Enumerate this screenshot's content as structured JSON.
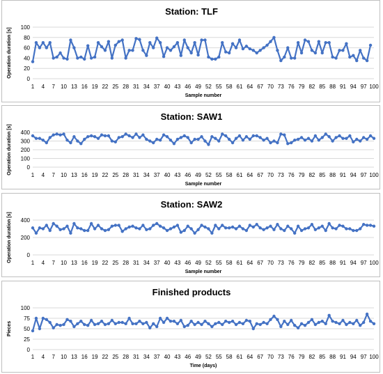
{
  "colors": {
    "line": "#4472C4",
    "grid": "#d9d9d9",
    "border": "#bfbfbf"
  },
  "x_tick_labels": [
    "1",
    "4",
    "7",
    "10",
    "13",
    "16",
    "19",
    "22",
    "25",
    "28",
    "31",
    "34",
    "37",
    "40",
    "43",
    "46",
    "49",
    "52",
    "55",
    "58",
    "61",
    "64",
    "67",
    "70",
    "73",
    "76",
    "79",
    "82",
    "85",
    "88",
    "91",
    "94",
    "97",
    "100"
  ],
  "chart_data": [
    {
      "type": "line",
      "title": "Station: TLF",
      "xlabel": "Sample number",
      "ylabel": "Operation duration [s]",
      "ylim": [
        0,
        100
      ],
      "yticks": [
        0,
        20,
        40,
        60,
        80,
        100
      ],
      "xlim": [
        1,
        100
      ],
      "grid": true,
      "series": [
        {
          "values": [
            33,
            70,
            60,
            70,
            60,
            70,
            40,
            42,
            50,
            40,
            38,
            75,
            60,
            40,
            42,
            38,
            64,
            40,
            42,
            70,
            62,
            55,
            72,
            40,
            65,
            72,
            75,
            40,
            55,
            55,
            78,
            76,
            55,
            45,
            70,
            60,
            79,
            70,
            43,
            60,
            55,
            62,
            70,
            45,
            75,
            60,
            50,
            70,
            46,
            75,
            75,
            42,
            38,
            38,
            42,
            70,
            52,
            50,
            68,
            60,
            75,
            58,
            63,
            58,
            55,
            50,
            55,
            60,
            65,
            72,
            80,
            55,
            35,
            42,
            60,
            40,
            40,
            70,
            50,
            75,
            72,
            55,
            50,
            72,
            50,
            70,
            70,
            42,
            40,
            55,
            55,
            68,
            42,
            45,
            35,
            55,
            40,
            35,
            65
          ]
        }
      ]
    },
    {
      "type": "line",
      "title": "Station: SAW1",
      "xlabel": "Sample number",
      "ylabel": "Operation duration [s]",
      "ylim": [
        0,
        400
      ],
      "yticks": [
        0,
        100,
        200,
        300,
        400
      ],
      "xlim": [
        1,
        100
      ],
      "grid": true,
      "series": [
        {
          "values": [
            360,
            330,
            330,
            310,
            280,
            340,
            370,
            380,
            370,
            380,
            310,
            280,
            350,
            300,
            270,
            320,
            350,
            360,
            350,
            330,
            370,
            360,
            360,
            300,
            290,
            340,
            350,
            380,
            360,
            340,
            380,
            340,
            370,
            320,
            300,
            280,
            320,
            310,
            370,
            350,
            310,
            270,
            320,
            340,
            360,
            340,
            280,
            320,
            320,
            350,
            300,
            260,
            350,
            330,
            300,
            380,
            360,
            320,
            280,
            330,
            360,
            310,
            350,
            320,
            360,
            360,
            340,
            310,
            330,
            280,
            300,
            280,
            380,
            370,
            270,
            280,
            310,
            320,
            340,
            310,
            330,
            300,
            360,
            310,
            340,
            380,
            350,
            300,
            340,
            360,
            330,
            330,
            360,
            290,
            320,
            300,
            340,
            320,
            360,
            330
          ]
        }
      ]
    },
    {
      "type": "line",
      "title": "Station: SAW2",
      "xlabel": "Sample number",
      "ylabel": "Operation duration [s]",
      "ylim": [
        0,
        400
      ],
      "yticks": [
        0,
        200,
        400
      ],
      "xlim": [
        1,
        100
      ],
      "grid": true,
      "series": [
        {
          "values": [
            310,
            250,
            310,
            300,
            340,
            280,
            360,
            330,
            290,
            300,
            330,
            250,
            360,
            310,
            300,
            280,
            280,
            360,
            300,
            340,
            300,
            280,
            290,
            330,
            340,
            340,
            270,
            300,
            320,
            330,
            310,
            300,
            340,
            290,
            300,
            340,
            360,
            330,
            310,
            280,
            300,
            320,
            340,
            260,
            280,
            330,
            300,
            250,
            290,
            340,
            320,
            300,
            250,
            340,
            300,
            340,
            310,
            310,
            320,
            300,
            330,
            300,
            280,
            340,
            320,
            350,
            310,
            290,
            310,
            330,
            290,
            350,
            300,
            280,
            330,
            300,
            250,
            330,
            280,
            300,
            310,
            350,
            290,
            310,
            330,
            280,
            360,
            310,
            300,
            340,
            330,
            300,
            300,
            280,
            280,
            300,
            350,
            340,
            340,
            330
          ]
        }
      ]
    },
    {
      "type": "line",
      "title": "Finished products",
      "xlabel": "Time (days)",
      "ylabel": "Pieces",
      "ylim": [
        0,
        100
      ],
      "yticks": [
        0,
        25,
        50,
        75,
        100
      ],
      "xlim": [
        1,
        100
      ],
      "grid": true,
      "series": [
        {
          "values": [
            45,
            75,
            50,
            75,
            72,
            65,
            52,
            60,
            58,
            60,
            72,
            68,
            55,
            62,
            68,
            60,
            58,
            70,
            60,
            62,
            68,
            60,
            62,
            70,
            62,
            65,
            65,
            62,
            75,
            62,
            62,
            68,
            62,
            65,
            52,
            62,
            55,
            75,
            65,
            75,
            68,
            68,
            62,
            70,
            55,
            58,
            68,
            60,
            65,
            60,
            68,
            62,
            55,
            62,
            65,
            60,
            68,
            65,
            68,
            60,
            65,
            62,
            70,
            68,
            50,
            62,
            60,
            65,
            62,
            72,
            80,
            72,
            55,
            68,
            60,
            70,
            58,
            52,
            62,
            58,
            65,
            72,
            60,
            65,
            68,
            62,
            82,
            68,
            65,
            62,
            70,
            60,
            65,
            62,
            70,
            58,
            65,
            85,
            68,
            62
          ]
        }
      ]
    }
  ]
}
